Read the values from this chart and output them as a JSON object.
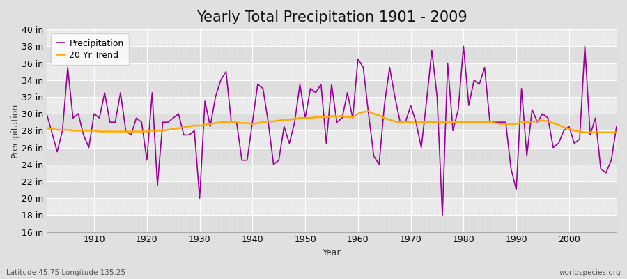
{
  "title": "Yearly Total Precipitation 1901 - 2009",
  "xlabel": "Year",
  "ylabel": "Precipitation",
  "subtitle_left": "Latitude 45.75 Longitude 135.25",
  "subtitle_right": "worldspecies.org",
  "years": [
    1901,
    1902,
    1903,
    1904,
    1905,
    1906,
    1907,
    1908,
    1909,
    1910,
    1911,
    1912,
    1913,
    1914,
    1915,
    1916,
    1917,
    1918,
    1919,
    1920,
    1921,
    1922,
    1923,
    1924,
    1925,
    1926,
    1927,
    1928,
    1929,
    1930,
    1931,
    1932,
    1933,
    1934,
    1935,
    1936,
    1937,
    1938,
    1939,
    1940,
    1941,
    1942,
    1943,
    1944,
    1945,
    1946,
    1947,
    1948,
    1949,
    1950,
    1951,
    1952,
    1953,
    1954,
    1955,
    1956,
    1957,
    1958,
    1959,
    1960,
    1961,
    1962,
    1963,
    1964,
    1965,
    1966,
    1967,
    1968,
    1969,
    1970,
    1971,
    1972,
    1973,
    1974,
    1975,
    1976,
    1977,
    1978,
    1979,
    1980,
    1981,
    1982,
    1983,
    1984,
    1985,
    1986,
    1987,
    1988,
    1989,
    1990,
    1991,
    1992,
    1993,
    1994,
    1995,
    1996,
    1997,
    1998,
    1999,
    2000,
    2001,
    2002,
    2003,
    2004,
    2005,
    2006,
    2007,
    2008,
    2009
  ],
  "precip_in": [
    30.0,
    27.8,
    25.5,
    28.0,
    35.5,
    29.5,
    30.0,
    27.5,
    26.0,
    30.0,
    29.5,
    32.5,
    29.0,
    29.0,
    32.5,
    28.0,
    27.5,
    29.5,
    29.0,
    24.5,
    32.5,
    21.5,
    29.0,
    29.0,
    29.5,
    30.0,
    27.5,
    27.5,
    28.0,
    20.0,
    31.5,
    28.5,
    32.0,
    34.0,
    35.0,
    29.0,
    29.0,
    24.5,
    24.5,
    29.0,
    33.5,
    33.0,
    29.0,
    24.0,
    24.5,
    28.5,
    26.5,
    29.0,
    33.5,
    29.5,
    33.0,
    32.5,
    33.5,
    26.5,
    33.5,
    29.0,
    29.5,
    32.5,
    29.5,
    36.5,
    35.5,
    30.0,
    25.0,
    24.0,
    31.0,
    35.5,
    32.0,
    29.0,
    29.0,
    31.0,
    29.0,
    26.0,
    31.5,
    37.5,
    32.0,
    18.0,
    36.0,
    28.0,
    30.5,
    38.0,
    31.0,
    34.0,
    33.5,
    35.5,
    29.0,
    29.0,
    29.0,
    29.0,
    23.5,
    21.0,
    33.0,
    25.0,
    30.5,
    29.0,
    30.0,
    29.5,
    26.0,
    26.5,
    28.0,
    28.5,
    26.5,
    27.0,
    38.0,
    27.5,
    29.5,
    23.5,
    23.0,
    24.5,
    28.5
  ],
  "trend_in": [
    28.3,
    28.2,
    28.1,
    28.1,
    28.1,
    28.0,
    28.0,
    28.0,
    28.0,
    28.0,
    27.9,
    27.9,
    27.9,
    27.9,
    27.9,
    27.9,
    27.9,
    27.9,
    27.9,
    27.9,
    28.0,
    28.0,
    28.0,
    28.1,
    28.2,
    28.3,
    28.4,
    28.5,
    28.6,
    28.6,
    28.7,
    28.8,
    28.9,
    29.0,
    29.0,
    29.0,
    29.0,
    28.9,
    28.9,
    28.8,
    28.9,
    29.0,
    29.1,
    29.1,
    29.2,
    29.3,
    29.3,
    29.4,
    29.5,
    29.5,
    29.5,
    29.6,
    29.6,
    29.6,
    29.7,
    29.7,
    29.7,
    29.6,
    29.6,
    30.0,
    30.2,
    30.3,
    30.0,
    29.8,
    29.5,
    29.3,
    29.1,
    29.0,
    29.0,
    29.0,
    28.9,
    29.0,
    29.0,
    29.0,
    29.0,
    29.0,
    29.0,
    29.0,
    29.0,
    29.0,
    29.0,
    29.0,
    29.0,
    29.0,
    29.0,
    28.9,
    28.8,
    28.8,
    28.8,
    28.8,
    29.0,
    29.0,
    29.1,
    29.1,
    29.2,
    29.1,
    28.9,
    28.7,
    28.4,
    28.2,
    28.0,
    27.9,
    27.8,
    27.8,
    27.8,
    27.8,
    27.8,
    27.8,
    27.8
  ],
  "precip_color": "#990099",
  "trend_color": "#ffaa00",
  "bg_color": "#e0e0e0",
  "plot_bg_color": "#e8e8e8",
  "band_color_light": "#ebebeb",
  "band_color_dark": "#dedede",
  "grid_color_major": "#ffffff",
  "grid_color_minor": "#e4e4e4",
  "ylim": [
    16,
    40
  ],
  "yticks": [
    16,
    18,
    20,
    22,
    24,
    26,
    28,
    30,
    32,
    34,
    36,
    38,
    40
  ],
  "ytick_labels": [
    "16 in",
    "18 in",
    "20 in",
    "22 in",
    "24 in",
    "26 in",
    "28 in",
    "30 in",
    "32 in",
    "34 in",
    "36 in",
    "38 in",
    "40 in"
  ],
  "xlim": [
    1901,
    2009
  ],
  "xticks": [
    1910,
    1920,
    1930,
    1940,
    1950,
    1960,
    1970,
    1980,
    1990,
    2000
  ],
  "title_fontsize": 15,
  "axis_fontsize": 9,
  "legend_fontsize": 9
}
